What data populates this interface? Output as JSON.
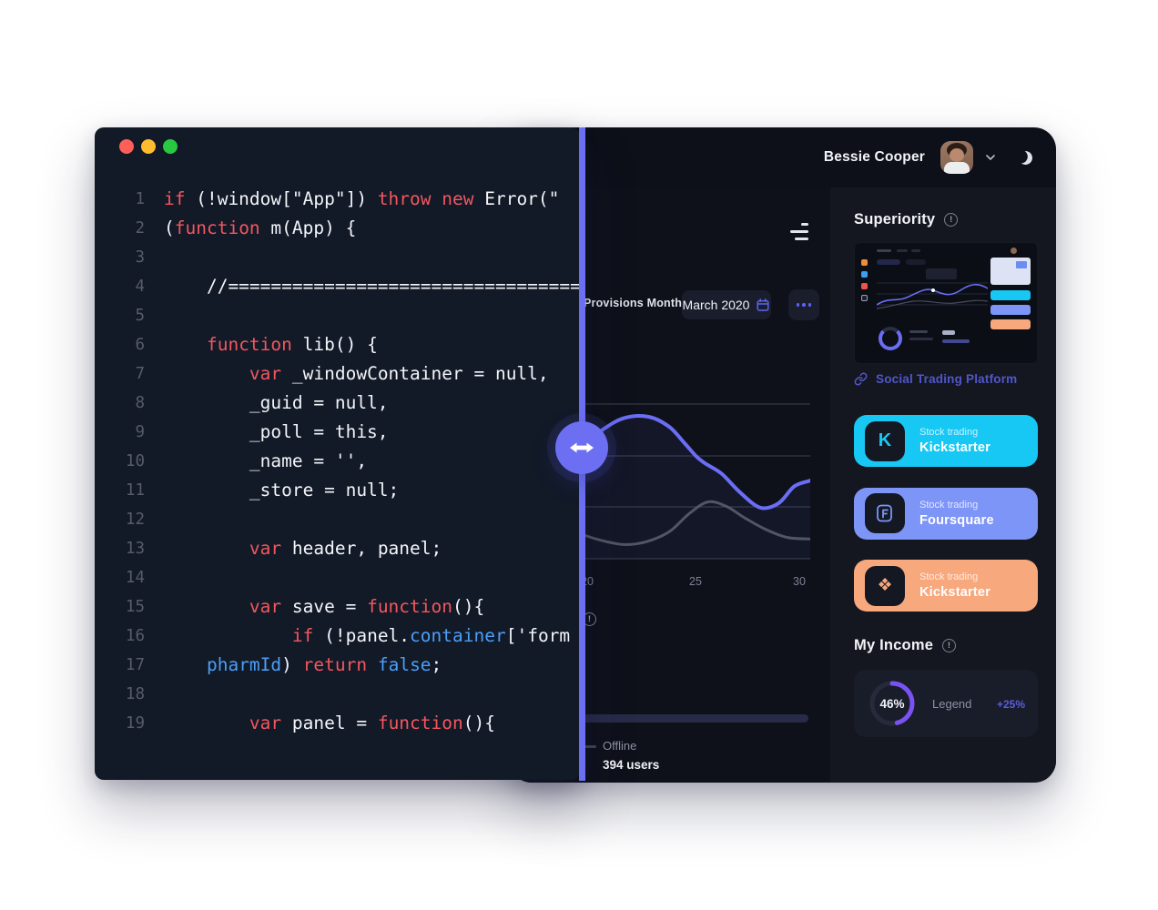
{
  "editor": {
    "window_controls": [
      {
        "name": "close",
        "color": "#ff5f57"
      },
      {
        "name": "minimize",
        "color": "#febc2e"
      },
      {
        "name": "zoom",
        "color": "#28c840"
      }
    ],
    "code_lines": [
      {
        "n": "1",
        "parts": [
          [
            "k",
            "if"
          ],
          [
            "p",
            " (!window[\"App\"]) "
          ],
          [
            "k",
            "throw new"
          ],
          [
            "p",
            " Error(\""
          ]
        ]
      },
      {
        "n": "2",
        "parts": [
          [
            "p",
            "("
          ],
          [
            "k",
            "function"
          ],
          [
            "p",
            " m(App) {"
          ]
        ]
      },
      {
        "n": "3",
        "parts": []
      },
      {
        "n": "4",
        "parts": [
          [
            "p",
            "    //=============================================="
          ]
        ]
      },
      {
        "n": "5",
        "parts": []
      },
      {
        "n": "6",
        "parts": [
          [
            "p",
            "    "
          ],
          [
            "k",
            "function"
          ],
          [
            "p",
            " lib() {"
          ]
        ]
      },
      {
        "n": "7",
        "parts": [
          [
            "p",
            "        "
          ],
          [
            "k",
            "var"
          ],
          [
            "p",
            " _windowContainer = null,"
          ]
        ]
      },
      {
        "n": "8",
        "parts": [
          [
            "p",
            "        _guid = null,"
          ]
        ]
      },
      {
        "n": "9",
        "parts": [
          [
            "p",
            "        _poll = this,"
          ]
        ]
      },
      {
        "n": "10",
        "parts": [
          [
            "p",
            "        _name = '',"
          ]
        ]
      },
      {
        "n": "11",
        "parts": [
          [
            "p",
            "        _store = null;"
          ]
        ]
      },
      {
        "n": "12",
        "parts": []
      },
      {
        "n": "13",
        "parts": [
          [
            "p",
            "        "
          ],
          [
            "k",
            "var"
          ],
          [
            "p",
            " header, panel;"
          ]
        ]
      },
      {
        "n": "14",
        "parts": []
      },
      {
        "n": "15",
        "parts": [
          [
            "p",
            "        "
          ],
          [
            "k",
            "var"
          ],
          [
            "p",
            " save = "
          ],
          [
            "k",
            "function"
          ],
          [
            "p",
            "(){"
          ]
        ]
      },
      {
        "n": "16",
        "parts": [
          [
            "p",
            "            "
          ],
          [
            "k",
            "if"
          ],
          [
            "p",
            " (!panel."
          ],
          [
            "b",
            "container"
          ],
          [
            "p",
            "['form"
          ]
        ]
      },
      {
        "n": "17",
        "parts": [
          [
            "p",
            "    "
          ],
          [
            "b",
            "pharmId"
          ],
          [
            "p",
            ") "
          ],
          [
            "k",
            "return"
          ],
          [
            "p",
            " "
          ],
          [
            "b",
            "false"
          ],
          [
            "p",
            ";"
          ]
        ]
      },
      {
        "n": "18",
        "parts": []
      },
      {
        "n": "19",
        "parts": [
          [
            "p",
            "        "
          ],
          [
            "k",
            "var"
          ],
          [
            "p",
            " panel = "
          ],
          [
            "k",
            "function"
          ],
          [
            "p",
            "(){"
          ]
        ]
      }
    ]
  },
  "dashboard": {
    "header": {
      "user_name": "Bessie Cooper"
    },
    "main": {
      "provisions_label": "Provisions Month",
      "date_label": "March 2020",
      "offline_label": "Offline",
      "offline_count": "394 users",
      "chart": {
        "type": "area",
        "x_tick_labels": [
          "20",
          "25",
          "30"
        ],
        "x_range": [
          20,
          30
        ],
        "ylim": [
          0,
          100
        ],
        "grid": true,
        "series": [
          {
            "name": "provisions",
            "color": "#6b6ef5",
            "x": [
              20,
              20.8,
              21.8,
              22.9,
              23.8,
              24.5,
              25,
              25.4,
              26.1,
              26.9,
              27.8,
              28.6,
              29.3,
              30
            ],
            "values": [
              79,
              90,
              99,
              100,
              93,
              81,
              72,
              67,
              60,
              47,
              36,
              39,
              51,
              55
            ]
          },
          {
            "name": "secondary",
            "color": "#5c6070",
            "x": [
              20,
              20.8,
              21.8,
              22.8,
              23.8,
              24.7,
              25.5,
              26.3,
              27.1,
              28,
              29,
              30
            ],
            "values": [
              17,
              13,
              10,
              12,
              19,
              32,
              40,
              37,
              29,
              21,
              15,
              14
            ]
          }
        ]
      }
    },
    "sidebar": {
      "superiority_title": "Superiority",
      "link_label": "Social Trading Platform",
      "cards": [
        {
          "subtitle": "Stock trading",
          "name": "Kickstarter",
          "bg": "#17c8f4",
          "icon": "kickstarter"
        },
        {
          "subtitle": "Stock trading",
          "name": "Foursquare",
          "bg": "#7e95f8",
          "icon": "foursquare"
        },
        {
          "subtitle": "Stock trading",
          "name": "Kickstarter",
          "bg": "#f8a87d",
          "icon": "binance"
        }
      ],
      "income_title": "My Income",
      "income_percent": "46%",
      "income_percent_value": 46,
      "income_legend": "Legend",
      "income_change": "+25%"
    }
  },
  "colors": {
    "accent": "#6d6ff3",
    "link": "#5056cc",
    "chart_purple": "#6b6ef5",
    "chart_gray": "#5c6070",
    "donut_arc": "#7a52f1",
    "icon_indigo": "#5c63f2"
  }
}
